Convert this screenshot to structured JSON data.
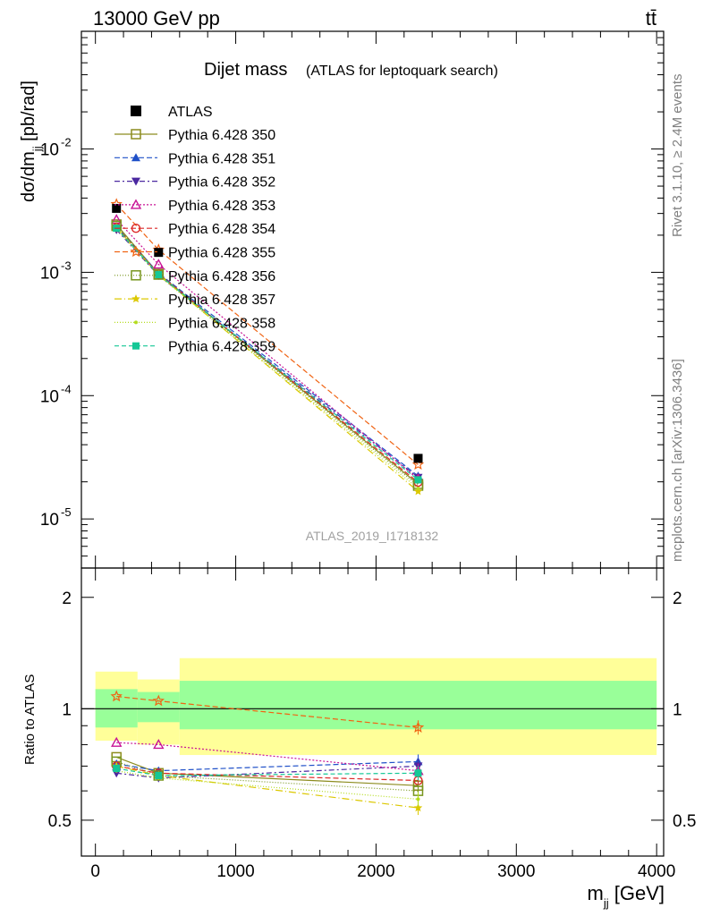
{
  "header": {
    "left": "13000 GeV pp",
    "right": "tt̄"
  },
  "side_labels": {
    "rivet": "Rivet 3.1.10, ≥ 2.4M events",
    "mcplots": "mcplots.cern.ch [arXiv:1306.3436]"
  },
  "chart_data": {
    "type": "scatter",
    "title": "Dijet mass",
    "subtitle": "(ATLAS for leptoquark search)",
    "analysis_id": "ATLAS_2019_I1718132",
    "xlabel": "m_jj [GeV]",
    "ylabel": "dσ/dm_jj [pb/rad]",
    "ratio_ylabel": "Ratio to ATLAS",
    "x_ticks": [
      "0",
      "1000",
      "2000",
      "3000",
      "4000"
    ],
    "y_ticks": [
      "10^-5",
      "10^-4",
      "10^-3",
      "10^-2"
    ],
    "ratio_ticks": [
      "0.5",
      "1",
      "2"
    ],
    "xlim": [
      -100,
      4050
    ],
    "ylim": [
      4e-06,
      0.09
    ],
    "ratio_ylim": [
      0.4,
      2.4
    ],
    "log_y": true,
    "x": [
      150,
      450,
      2300
    ],
    "bin_edges": [
      0,
      300,
      600,
      4000
    ],
    "data": {
      "name": "ATLAS",
      "values": [
        0.0033,
        0.00145,
        3.1e-05
      ]
    },
    "bands": {
      "inner": [
        [
          0.89,
          1.13
        ],
        [
          0.92,
          1.11
        ],
        [
          0.88,
          1.19
        ]
      ],
      "outer": [
        [
          0.82,
          1.26
        ],
        [
          0.8,
          1.2
        ],
        [
          0.75,
          1.37
        ]
      ]
    },
    "series": [
      {
        "name": "Pythia 6.428 350",
        "color": "#8c8c1e",
        "marker": "open-square",
        "dash": "",
        "ratio": [
          0.74,
          0.67,
          0.62
        ]
      },
      {
        "name": "Pythia 6.428 351",
        "color": "#1f50c8",
        "marker": "filled-triangle",
        "dash": "6,3",
        "ratio": [
          0.71,
          0.68,
          0.72
        ]
      },
      {
        "name": "Pythia 6.428 352",
        "color": "#4b28a0",
        "marker": "filled-invtriangle",
        "dash": "6,3,2,3",
        "ratio": [
          0.67,
          0.65,
          0.7
        ]
      },
      {
        "name": "Pythia 6.428 353",
        "color": "#c81496",
        "marker": "open-triangle",
        "dash": "2,2",
        "ratio": [
          0.81,
          0.8,
          0.68
        ]
      },
      {
        "name": "Pythia 6.428 354",
        "color": "#dc2828",
        "marker": "open-circle",
        "dash": "6,3",
        "ratio": [
          0.7,
          0.67,
          0.64
        ]
      },
      {
        "name": "Pythia 6.428 355",
        "color": "#f06414",
        "marker": "star",
        "dash": "6,3",
        "ratio": [
          1.08,
          1.05,
          0.89
        ]
      },
      {
        "name": "Pythia 6.428 356",
        "color": "#78961e",
        "marker": "open-square",
        "dash": "1,2",
        "ratio": [
          0.72,
          0.66,
          0.6
        ]
      },
      {
        "name": "Pythia 6.428 357",
        "color": "#dcc800",
        "marker": "small-star",
        "dash": "8,3,1,3",
        "ratio": [
          0.7,
          0.66,
          0.54
        ]
      },
      {
        "name": "Pythia 6.428 358",
        "color": "#b4dc1e",
        "marker": "dot",
        "dash": "1,2",
        "ratio": [
          0.68,
          0.65,
          0.57
        ]
      },
      {
        "name": "Pythia 6.428 359",
        "color": "#14c896",
        "marker": "filled-square",
        "dash": "5,3",
        "ratio": [
          0.69,
          0.66,
          0.67
        ]
      }
    ]
  }
}
